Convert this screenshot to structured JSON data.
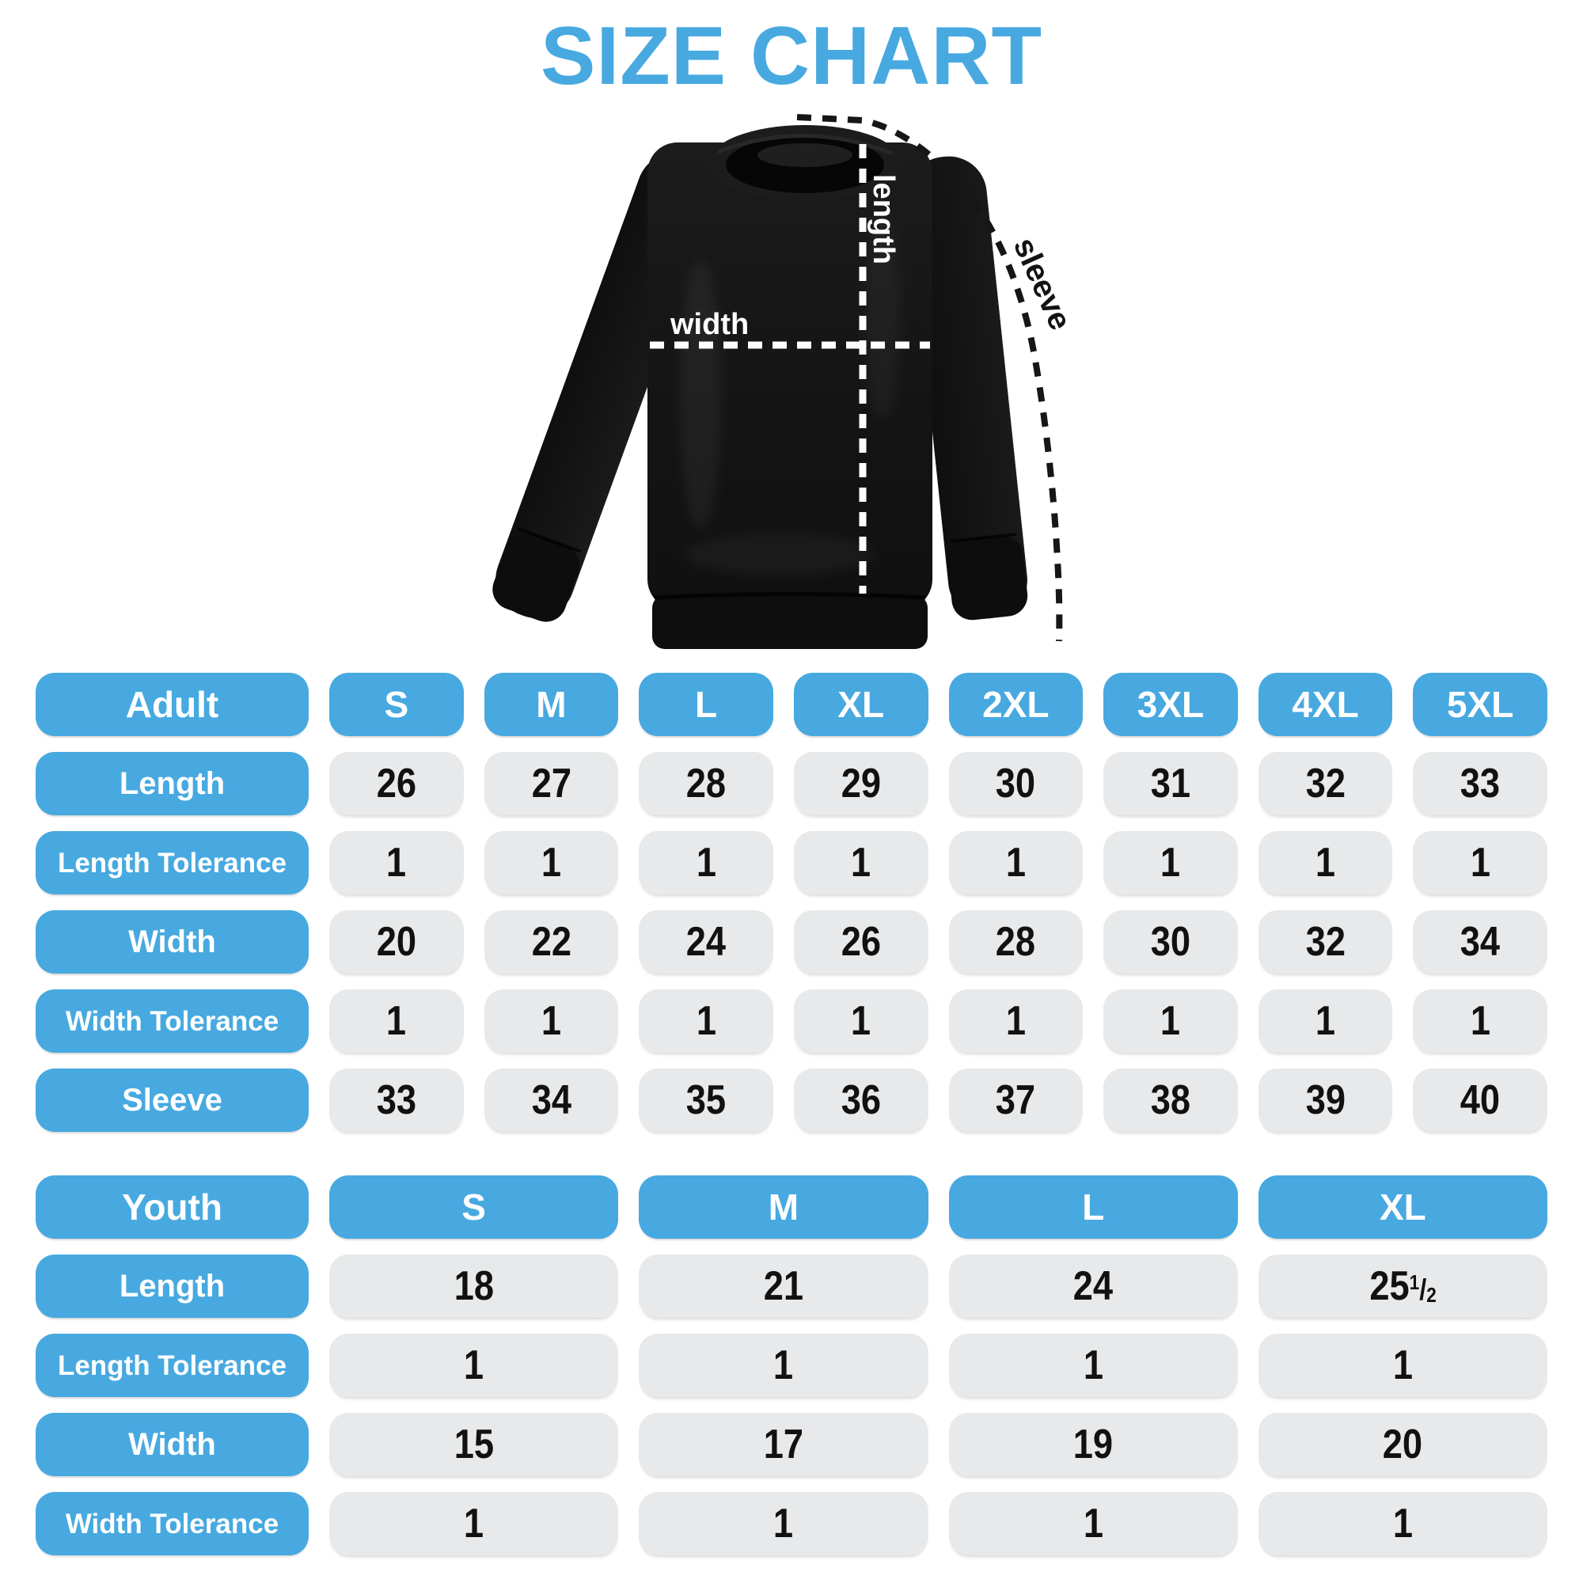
{
  "title": "SIZE CHART",
  "colors": {
    "accent_blue": "#47A9E0",
    "cell_gray": "#E8E9EA",
    "text_dark": "#111111",
    "shirt_black": "#141414"
  },
  "diagram": {
    "width_label": "width",
    "length_label": "length",
    "sleeve_label": "sleeve"
  },
  "adult_table": {
    "header": [
      "Adult",
      "S",
      "M",
      "L",
      "XL",
      "2XL",
      "3XL",
      "4XL",
      "5XL"
    ],
    "rows": [
      {
        "label": "Length",
        "values": [
          "26",
          "27",
          "28",
          "29",
          "30",
          "31",
          "32",
          "33"
        ]
      },
      {
        "label": "Length Tolerance",
        "values": [
          "1",
          "1",
          "1",
          "1",
          "1",
          "1",
          "1",
          "1"
        ]
      },
      {
        "label": "Width",
        "values": [
          "20",
          "22",
          "24",
          "26",
          "28",
          "30",
          "32",
          "34"
        ]
      },
      {
        "label": "Width Tolerance",
        "values": [
          "1",
          "1",
          "1",
          "1",
          "1",
          "1",
          "1",
          "1"
        ]
      },
      {
        "label": "Sleeve",
        "values": [
          "33",
          "34",
          "35",
          "36",
          "37",
          "38",
          "39",
          "40"
        ]
      }
    ]
  },
  "youth_table": {
    "header": [
      "Youth",
      "S",
      "M",
      "L",
      "XL"
    ],
    "rows": [
      {
        "label": "Length",
        "values": [
          "18",
          "21",
          "24",
          "25½"
        ]
      },
      {
        "label": "Length Tolerance",
        "values": [
          "1",
          "1",
          "1",
          "1"
        ]
      },
      {
        "label": "Width",
        "values": [
          "15",
          "17",
          "19",
          "20"
        ]
      },
      {
        "label": "Width Tolerance",
        "values": [
          "1",
          "1",
          "1",
          "1"
        ]
      }
    ]
  }
}
